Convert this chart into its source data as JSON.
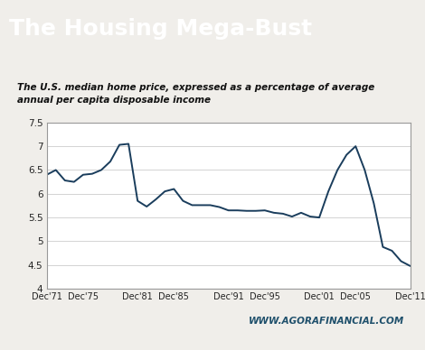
{
  "title": "The Housing Mega-Bust",
  "subtitle": "The U.S. median home price, expressed as a percentage of average\nannual per capita disposable income",
  "watermark": "WWW.AGORAFINANCIAL.COM",
  "header_color": "#1e4f6b",
  "line_color": "#1a3d5c",
  "fig_bg_color": "#f0eeea",
  "inner_bg_color": "#ffffff",
  "plot_bg_color": "#ffffff",
  "watermark_color": "#1e4f6b",
  "ylim": [
    4.0,
    7.5
  ],
  "yticks": [
    4.0,
    4.5,
    5.0,
    5.5,
    6.0,
    6.5,
    7.0,
    7.5
  ],
  "x_tick_positions": [
    1971,
    1975,
    1981,
    1985,
    1991,
    1995,
    2001,
    2005,
    2011
  ],
  "x_tick_labels": [
    "Dec'71",
    "Dec'75",
    "Dec'81",
    "Dec'85",
    "Dec'91",
    "Dec'95",
    "Dec'01",
    "Dec'05",
    "Dec'11"
  ],
  "years": [
    1971,
    1972,
    1973,
    1974,
    1975,
    1976,
    1977,
    1978,
    1979,
    1980,
    1981,
    1982,
    1983,
    1984,
    1985,
    1986,
    1987,
    1988,
    1989,
    1990,
    1991,
    1992,
    1993,
    1994,
    1995,
    1996,
    1997,
    1998,
    1999,
    2000,
    2001,
    2002,
    2003,
    2004,
    2005,
    2006,
    2007,
    2008,
    2009,
    2010,
    2011
  ],
  "values": [
    6.4,
    6.5,
    6.28,
    6.25,
    6.4,
    6.42,
    6.5,
    6.68,
    7.03,
    7.05,
    5.85,
    5.73,
    5.88,
    6.05,
    6.1,
    5.85,
    5.76,
    5.76,
    5.76,
    5.72,
    5.65,
    5.65,
    5.64,
    5.64,
    5.65,
    5.6,
    5.58,
    5.52,
    5.6,
    5.52,
    5.5,
    6.05,
    6.5,
    6.82,
    7.0,
    6.5,
    5.8,
    4.88,
    4.8,
    4.58,
    4.48
  ]
}
